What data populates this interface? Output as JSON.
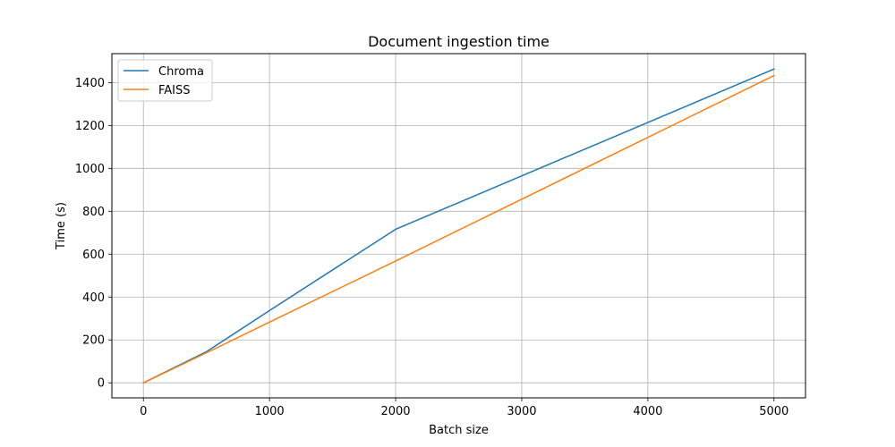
{
  "chart_data": {
    "type": "line",
    "title": "Document ingestion time",
    "xlabel": "Batch size",
    "ylabel": "Time (s)",
    "xlim": [
      -250,
      5250
    ],
    "ylim": [
      -70,
      1535
    ],
    "xticks": [
      0,
      1000,
      2000,
      3000,
      4000,
      5000
    ],
    "yticks": [
      0,
      200,
      400,
      600,
      800,
      1000,
      1200,
      1400
    ],
    "grid": true,
    "legend_position": "top-left",
    "series": [
      {
        "name": "Chroma",
        "color": "#1f77b4",
        "x": [
          0,
          500,
          1000,
          2000,
          5000
        ],
        "y": [
          0,
          145,
          337,
          716,
          1463
        ]
      },
      {
        "name": "FAISS",
        "color": "#ff7f0e",
        "x": [
          0,
          500,
          1000,
          2000,
          5000
        ],
        "y": [
          0,
          140,
          283,
          568,
          1433
        ]
      }
    ]
  }
}
